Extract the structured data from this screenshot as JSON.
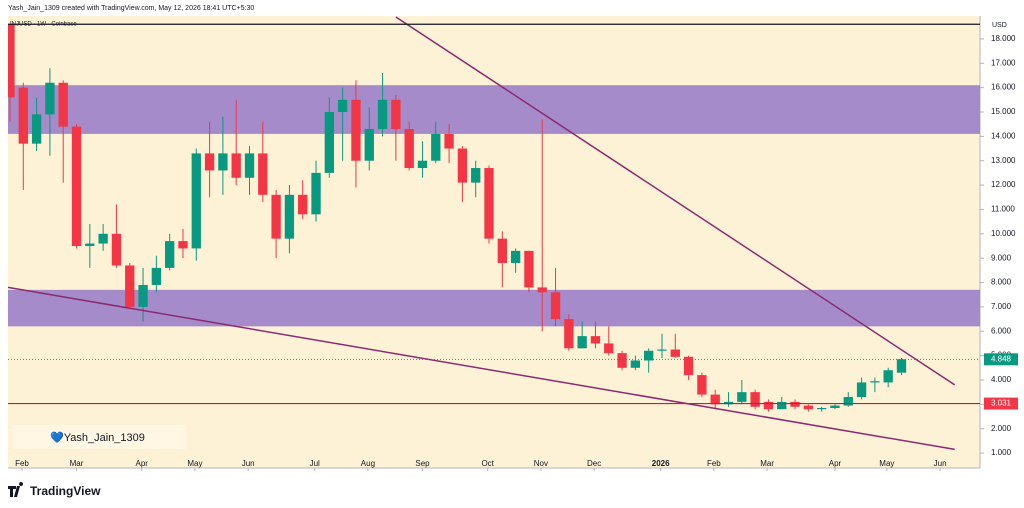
{
  "header": "Yash_Jain_1309 created with TradingView.com, May 12, 2026 18:41 UTC+5:30",
  "watermark": "💙Yash_Jain_1309",
  "footer_logo": "TradingView",
  "chart_data": {
    "type": "candlestick",
    "title": "INJUSD · 1W · Coinbase",
    "y_axis_label": "USD",
    "up_color": "#089981",
    "down_color": "#f23645",
    "xlim": [
      -0.15,
      72.9
    ],
    "ylim": [
      0.51,
      18.94
    ],
    "xticks": [
      {
        "value": 0.9,
        "label": "Feb"
      },
      {
        "value": 5.0,
        "label": "Mar"
      },
      {
        "value": 9.9,
        "label": "Apr"
      },
      {
        "value": 13.9,
        "label": "May"
      },
      {
        "value": 17.9,
        "label": "Jun"
      },
      {
        "value": 22.9,
        "label": "Jul"
      },
      {
        "value": 26.9,
        "label": "Aug"
      },
      {
        "value": 31.0,
        "label": "Sep"
      },
      {
        "value": 35.9,
        "label": "Oct"
      },
      {
        "value": 39.9,
        "label": "Nov"
      },
      {
        "value": 43.9,
        "label": "Dec"
      },
      {
        "value": 48.9,
        "label": "2026"
      },
      {
        "value": 52.9,
        "label": "Feb"
      },
      {
        "value": 56.9,
        "label": "Mar"
      },
      {
        "value": 62.0,
        "label": "Apr"
      },
      {
        "value": 65.9,
        "label": "May"
      },
      {
        "value": 69.9,
        "label": "Jun"
      }
    ],
    "yticks": [
      {
        "value": 1,
        "label": "1.000"
      },
      {
        "value": 2,
        "label": "2.000"
      },
      {
        "value": 3,
        "label": "3.000"
      },
      {
        "value": 4,
        "label": "4.000"
      },
      {
        "value": 5,
        "label": "5.000"
      },
      {
        "value": 6,
        "label": "6.000"
      },
      {
        "value": 7,
        "label": "7.000"
      },
      {
        "value": 8,
        "label": "8.000"
      },
      {
        "value": 9,
        "label": "9.000"
      },
      {
        "value": 10,
        "label": "10.000"
      },
      {
        "value": 11,
        "label": "11.000"
      },
      {
        "value": 12,
        "label": "12.000"
      },
      {
        "value": 13,
        "label": "13.000"
      },
      {
        "value": 14,
        "label": "14.000"
      },
      {
        "value": 15,
        "label": "15.000"
      },
      {
        "value": 16,
        "label": "16.000"
      },
      {
        "value": 17,
        "label": "17.000"
      },
      {
        "value": 18,
        "label": "18.000"
      }
    ],
    "open": [
      18.6,
      16.0,
      13.7,
      14.9,
      16.2,
      14.4,
      9.5,
      9.6,
      10.0,
      8.7,
      7.0,
      7.9,
      8.6,
      9.7,
      9.4,
      13.3,
      12.6,
      13.3,
      12.3,
      13.3,
      11.6,
      9.8,
      11.6,
      10.8,
      12.5,
      15.0,
      15.5,
      13.0,
      14.3,
      15.5,
      14.3,
      12.7,
      13.0,
      14.1,
      13.5,
      12.1,
      12.7,
      9.8,
      8.8,
      9.3,
      7.8,
      7.6,
      6.5,
      5.3,
      5.8,
      5.5,
      5.1,
      4.5,
      4.8,
      5.2,
      5.25,
      4.95,
      4.2,
      3.4,
      3.0,
      3.1,
      3.5,
      3.1,
      2.8,
      3.1,
      2.95,
      2.8,
      2.85,
      2.95,
      3.3,
      3.9,
      3.9,
      4.3
    ],
    "high": [
      18.6,
      16.2,
      15.6,
      16.8,
      16.3,
      14.5,
      10.4,
      10.4,
      11.2,
      8.8,
      8.6,
      9.1,
      10.0,
      10.2,
      13.5,
      14.6,
      14.8,
      15.5,
      13.6,
      14.6,
      11.8,
      12.0,
      12.2,
      13.0,
      15.6,
      16.0,
      16.3,
      15.2,
      16.6,
      15.7,
      14.6,
      13.8,
      14.6,
      14.5,
      13.6,
      13.0,
      12.8,
      10.1,
      9.4,
      9.3,
      14.7,
      8.6,
      6.7,
      6.4,
      6.4,
      6.2,
      5.2,
      5.0,
      5.3,
      5.9,
      5.9,
      5.0,
      4.3,
      3.6,
      3.5,
      4.0,
      3.6,
      3.2,
      3.3,
      3.2,
      3.0,
      2.9,
      3.0,
      3.5,
      4.1,
      4.1,
      4.5,
      4.9
    ],
    "low": [
      14.6,
      11.8,
      13.4,
      13.2,
      12.1,
      9.4,
      8.6,
      9.3,
      8.6,
      6.9,
      6.4,
      7.6,
      8.5,
      9.0,
      8.9,
      11.5,
      11.6,
      12.0,
      11.6,
      11.3,
      9.0,
      9.2,
      10.6,
      10.5,
      12.3,
      13.0,
      11.9,
      12.6,
      14.0,
      13.0,
      12.6,
      12.3,
      12.9,
      12.9,
      11.3,
      11.5,
      9.6,
      7.8,
      8.4,
      7.6,
      6.0,
      6.2,
      5.2,
      5.3,
      5.3,
      5.0,
      4.4,
      4.4,
      4.3,
      4.9,
      4.9,
      4.0,
      3.3,
      2.8,
      2.9,
      3.0,
      2.8,
      2.7,
      2.8,
      2.8,
      2.7,
      2.7,
      2.8,
      2.9,
      3.2,
      3.5,
      3.7,
      4.2
    ],
    "close": [
      15.6,
      13.7,
      14.9,
      16.2,
      14.4,
      9.5,
      9.6,
      10.0,
      8.7,
      7.0,
      7.9,
      8.6,
      9.7,
      9.4,
      13.3,
      12.6,
      13.3,
      12.3,
      13.3,
      11.6,
      9.8,
      11.6,
      10.8,
      12.5,
      15.0,
      15.5,
      13.0,
      14.3,
      15.5,
      14.3,
      12.7,
      13.0,
      14.1,
      13.5,
      12.1,
      12.7,
      9.8,
      8.8,
      9.3,
      7.8,
      7.6,
      6.5,
      5.3,
      5.8,
      5.5,
      5.1,
      4.5,
      4.8,
      5.2,
      5.25,
      4.95,
      4.2,
      3.4,
      3.0,
      3.1,
      3.5,
      2.9,
      2.8,
      3.1,
      2.9,
      2.8,
      2.85,
      2.95,
      3.3,
      3.9,
      3.95,
      4.4,
      4.85
    ],
    "zones": [
      {
        "low": 14.1,
        "high": 16.1,
        "color": "#9b7fc8"
      },
      {
        "low": 6.2,
        "high": 7.7,
        "color": "#9b7fc8"
      }
    ],
    "trendlines": [
      {
        "x": [
          29.0,
          71.0
        ],
        "y": [
          18.9,
          3.8
        ],
        "color": "#8b2a72"
      },
      {
        "x": [
          -0.15,
          71.0
        ],
        "y": [
          7.8,
          1.15
        ],
        "color": "#8b2a72"
      }
    ],
    "hlines": [
      {
        "value": 18.6,
        "color": "#131722"
      },
      {
        "value": 3.031,
        "color": "#c2185b",
        "label_color": "#f23645"
      }
    ],
    "last_price": 4.848
  }
}
